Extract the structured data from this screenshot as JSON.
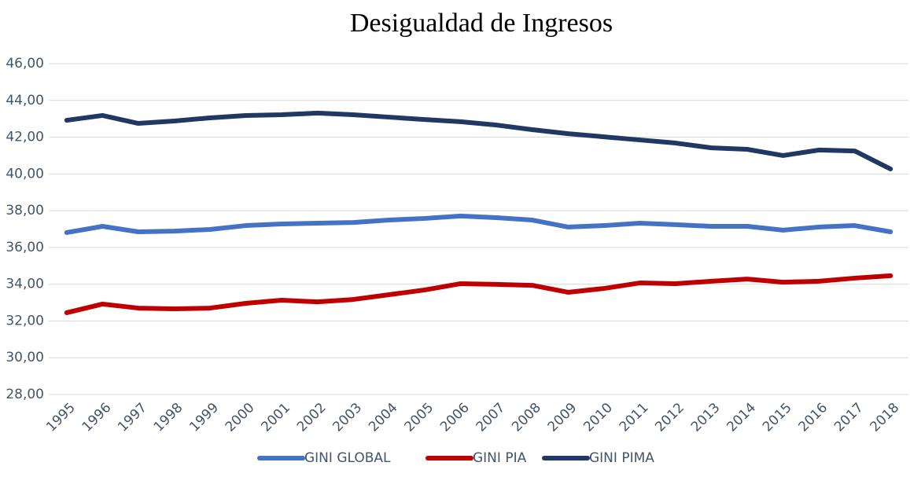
{
  "chart_data": {
    "type": "line",
    "title": "Desigualdad de Ingresos",
    "categories": [
      "1995",
      "1996",
      "1997",
      "1998",
      "1999",
      "2000",
      "2001",
      "2002",
      "2003",
      "2004",
      "2005",
      "2006",
      "2007",
      "2008",
      "2009",
      "2010",
      "2011",
      "2012",
      "2013",
      "2014",
      "2015",
      "2016",
      "2017",
      "2018"
    ],
    "series": [
      {
        "name": "GINI GLOBAL",
        "color": "#4472c4",
        "values": [
          36.81,
          37.15,
          36.85,
          36.89,
          36.98,
          37.19,
          37.28,
          37.32,
          37.36,
          37.49,
          37.58,
          37.71,
          37.62,
          37.49,
          37.11,
          37.19,
          37.32,
          37.24,
          37.15,
          37.15,
          36.94,
          37.11,
          37.19,
          36.85
        ]
      },
      {
        "name": "GINI PIA",
        "color": "#c00000",
        "values": [
          32.45,
          32.92,
          32.7,
          32.66,
          32.7,
          32.96,
          33.13,
          33.04,
          33.17,
          33.43,
          33.69,
          34.03,
          33.99,
          33.94,
          33.56,
          33.77,
          34.07,
          34.03,
          34.16,
          34.28,
          34.11,
          34.16,
          34.33,
          34.46
        ]
      },
      {
        "name": "GINI PIMA",
        "color": "#203864",
        "values": [
          42.92,
          43.18,
          42.75,
          42.88,
          43.05,
          43.18,
          43.22,
          43.31,
          43.22,
          43.09,
          42.96,
          42.84,
          42.66,
          42.41,
          42.19,
          42.02,
          41.85,
          41.68,
          41.42,
          41.34,
          41.0,
          41.3,
          41.25,
          40.27
        ]
      }
    ],
    "ylim": [
      28,
      46
    ],
    "yticks": [
      {
        "value": 28,
        "label": "28,00"
      },
      {
        "value": 30,
        "label": "30,00"
      },
      {
        "value": 32,
        "label": "32,00"
      },
      {
        "value": 34,
        "label": "34,00"
      },
      {
        "value": 36,
        "label": "36,00"
      },
      {
        "value": 38,
        "label": "38,00"
      },
      {
        "value": 40,
        "label": "40,00"
      },
      {
        "value": 42,
        "label": "42,00"
      },
      {
        "value": 44,
        "label": "44,00"
      },
      {
        "value": 46,
        "label": "46,00"
      }
    ],
    "grid": true,
    "legend": "bottom"
  }
}
